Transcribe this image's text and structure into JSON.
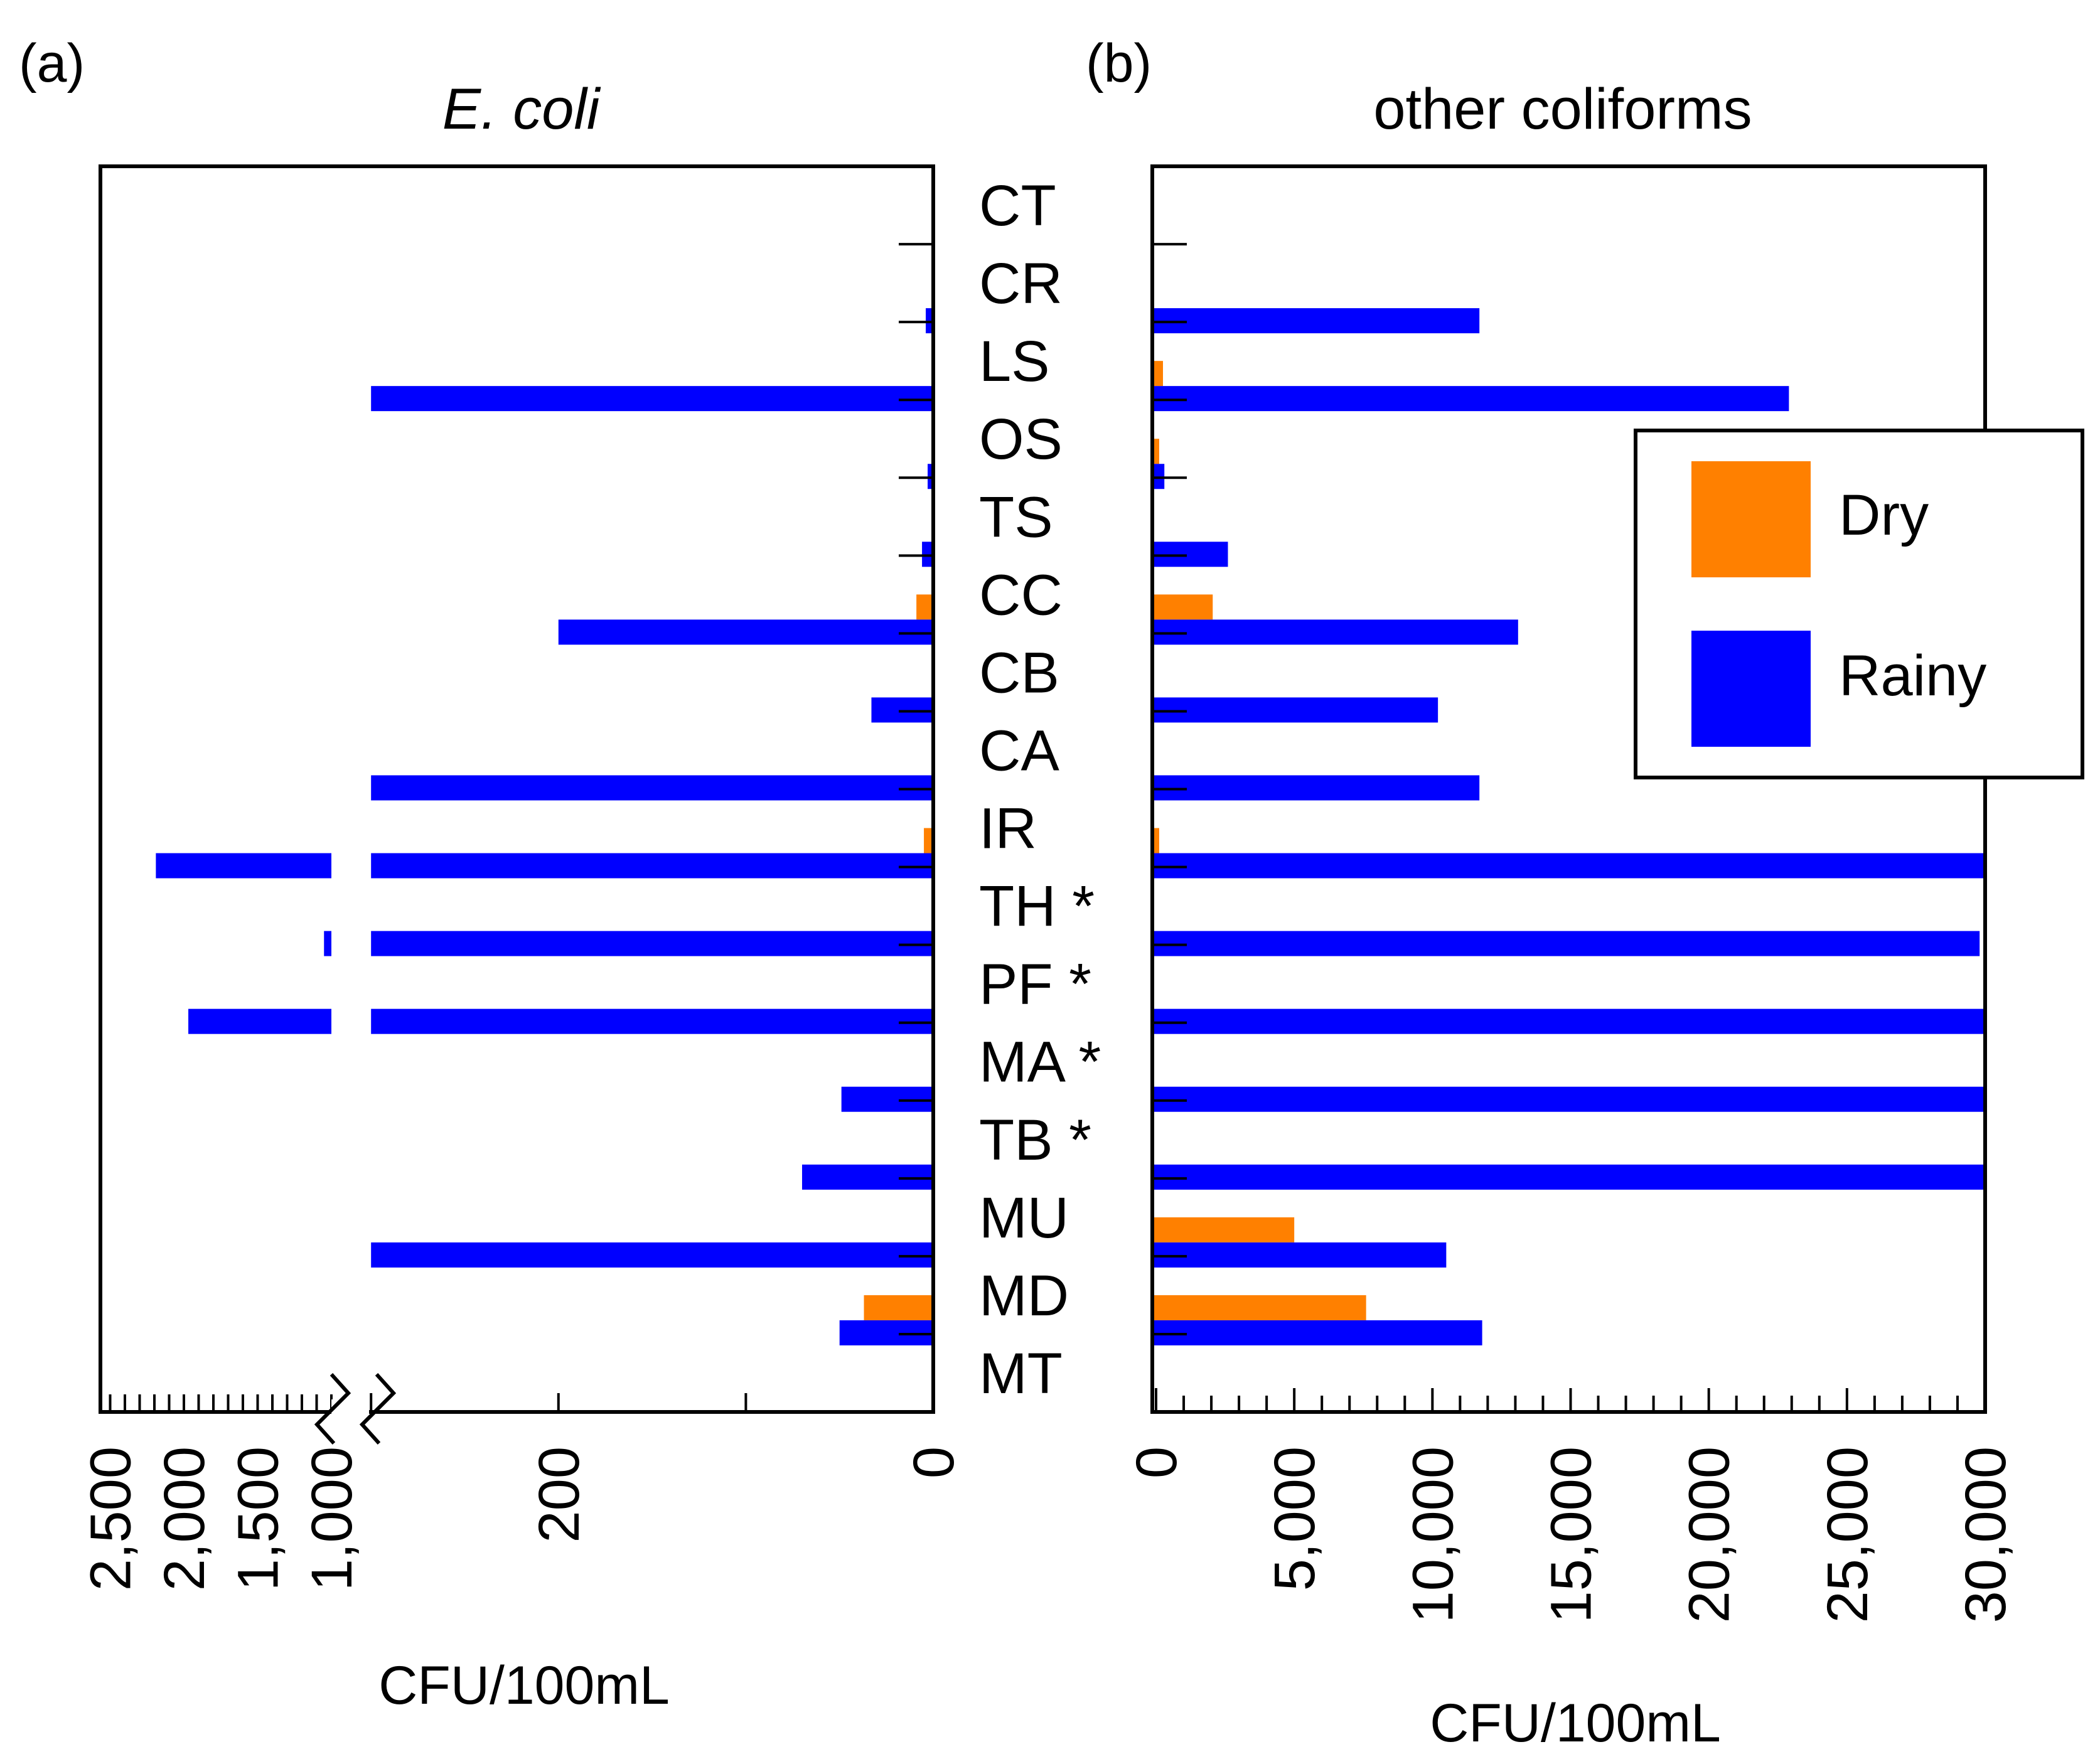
{
  "colors": {
    "dry": "#ff8000",
    "rainy": "#0000ff",
    "axis": "#000000"
  },
  "panel_labels": {
    "a": "(a)",
    "b": "(b)"
  },
  "chart_data": [
    {
      "id": "a",
      "type": "bar",
      "orientation": "horizontal",
      "direction": "leftward",
      "title": "E. coli",
      "xlabel": "CFU/100mL",
      "axis_break": true,
      "linear_segment": {
        "range": [
          0,
          300
        ],
        "ticks": [
          0,
          100,
          200,
          300
        ],
        "tick_labels": [
          "0",
          "",
          "200",
          ""
        ]
      },
      "broken_segment": {
        "range": [
          1000,
          2500
        ],
        "ticks": [
          1000,
          1500,
          2000,
          2500
        ],
        "tick_labels": [
          "1,000",
          "1,500",
          "2,000",
          "2,500"
        ]
      },
      "categories": [
        "CT",
        "CR",
        "LS",
        "OS",
        "TS",
        "CC",
        "CB",
        "CA",
        "IR",
        "TH",
        "PF",
        "MA",
        "TB",
        "MU",
        "MD",
        "MT"
      ],
      "series": [
        {
          "name": "Dry",
          "values": [
            0,
            0,
            0,
            0,
            0,
            9,
            0,
            0,
            5,
            0,
            0,
            0,
            0,
            1,
            37,
            0
          ]
        },
        {
          "name": "Rainy",
          "values": [
            0,
            4,
            1000,
            3,
            6,
            200,
            33,
            1000,
            2190,
            1050,
            1970,
            49,
            70,
            1000,
            50,
            0
          ]
        }
      ]
    },
    {
      "id": "b",
      "type": "bar",
      "orientation": "horizontal",
      "title": "other coliforms",
      "xlabel": "CFU/100mL",
      "xlim": [
        0,
        30000
      ],
      "x_ticks": [
        0,
        5000,
        10000,
        15000,
        20000,
        25000,
        30000
      ],
      "x_tick_labels": [
        "0",
        "5,000",
        "10,000",
        "15,000",
        "20,000",
        "25,000",
        "30,000"
      ],
      "x_minor_step": 1000,
      "categories": [
        "CT",
        "CR",
        "LS",
        "OS",
        "TS",
        "CC",
        "CB",
        "CA",
        "IR",
        "TH",
        "PF",
        "MA",
        "TB",
        "MU",
        "MD",
        "MT"
      ],
      "series": [
        {
          "name": "Dry",
          "values": [
            0,
            0,
            250,
            100,
            0,
            2050,
            0,
            0,
            100,
            0,
            0,
            0,
            0,
            5000,
            7600,
            0
          ]
        },
        {
          "name": "Rainy",
          "values": [
            0,
            11700,
            22900,
            300,
            2600,
            13100,
            10200,
            11700,
            30000,
            29800,
            30000,
            30000,
            30000,
            10500,
            11800,
            0
          ]
        }
      ]
    }
  ],
  "category_labels": [
    "CT",
    "CR",
    "LS",
    "OS",
    "TS",
    "CC",
    "CB",
    "CA",
    "IR",
    "TH *",
    "PF *",
    "MA *",
    "TB *",
    "MU",
    "MD",
    "MT"
  ],
  "legend": {
    "items": [
      {
        "name": "Dry",
        "color": "#ff8000"
      },
      {
        "name": "Rainy",
        "color": "#0000ff"
      }
    ],
    "position": "right"
  }
}
